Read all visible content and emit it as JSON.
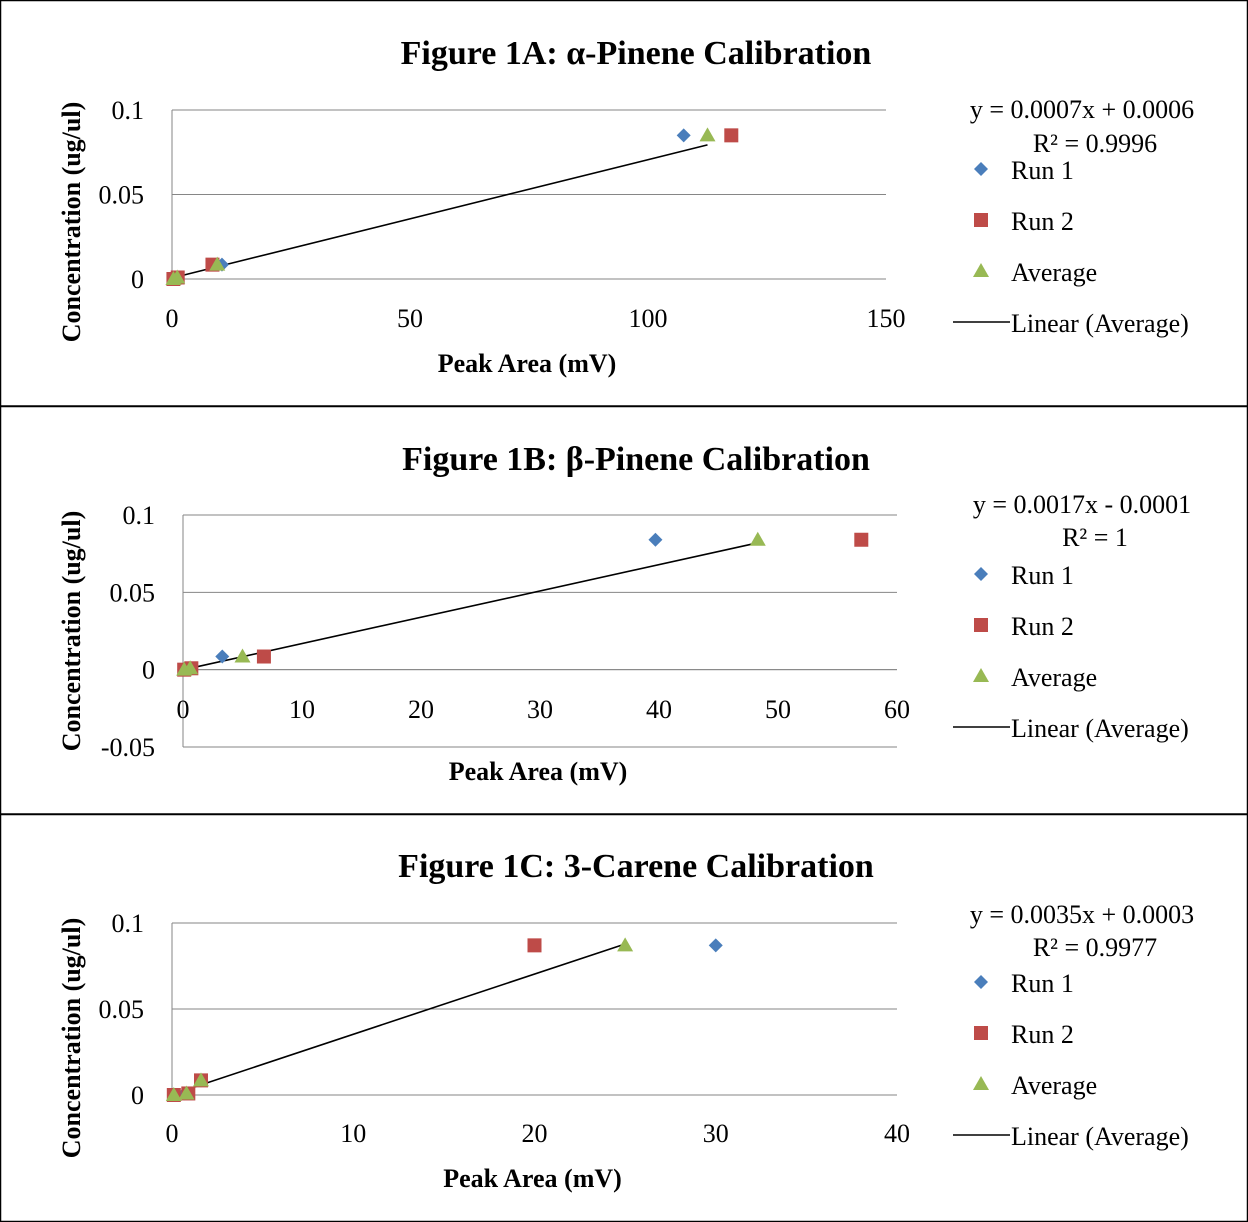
{
  "chart_data": [
    {
      "type": "scatter",
      "title": "Figure 1A: α-Pinene Calibration",
      "xlabel": "Peak Area (mV)",
      "ylabel": "Concentration (ug/ul)",
      "xlim": [
        0,
        150
      ],
      "ylim": [
        0,
        0.1
      ],
      "xticks": [
        0,
        50,
        100,
        150
      ],
      "yticks": [
        0,
        0.05,
        0.1
      ],
      "ytick_labels": [
        "0",
        "0.05",
        "0.1"
      ],
      "grid": true,
      "legend": "right",
      "series": [
        {
          "name": "Run 1",
          "marker": "diamond",
          "color": "#4a7ebb",
          "points": [
            [
              0.3,
              0
            ],
            [
              1.0,
              0.0009
            ],
            [
              10.5,
              0.0085
            ],
            [
              107.5,
              0.085
            ]
          ]
        },
        {
          "name": "Run 2",
          "marker": "square",
          "color": "#be4b48",
          "points": [
            [
              0.3,
              0
            ],
            [
              1.2,
              0.0009
            ],
            [
              8.5,
              0.0085
            ],
            [
              117.5,
              0.085
            ]
          ]
        },
        {
          "name": "Average",
          "marker": "triangle",
          "color": "#98b954",
          "points": [
            [
              0.3,
              0
            ],
            [
              1.1,
              0.0009
            ],
            [
              9.5,
              0.0085
            ],
            [
              112.5,
              0.085
            ]
          ]
        }
      ],
      "trendline": {
        "name": "Linear (Average)",
        "color": "#000000",
        "x_range": [
          0,
          112.5
        ],
        "slope": 0.0007,
        "intercept": 0.0006
      },
      "equation": "y = 0.0007x + 0.0006",
      "r2": "R² = 0.9996"
    },
    {
      "type": "scatter",
      "title": "Figure 1B: β-Pinene Calibration",
      "xlabel": "Peak Area (mV)",
      "ylabel": "Concentration (ug/ul)",
      "xlim": [
        0,
        60
      ],
      "ylim": [
        -0.05,
        0.1
      ],
      "xticks": [
        0,
        10,
        20,
        30,
        40,
        50,
        60
      ],
      "yticks": [
        -0.05,
        0,
        0.05,
        0.1
      ],
      "ytick_labels": [
        "-0.05",
        "0",
        "0.05",
        "0.1"
      ],
      "grid": true,
      "legend": "right",
      "series": [
        {
          "name": "Run 1",
          "marker": "diamond",
          "color": "#4a7ebb",
          "points": [
            [
              0.1,
              0
            ],
            [
              0.5,
              0.0009
            ],
            [
              3.3,
              0.0085
            ],
            [
              39.7,
              0.084
            ]
          ]
        },
        {
          "name": "Run 2",
          "marker": "square",
          "color": "#be4b48",
          "points": [
            [
              0.1,
              0
            ],
            [
              0.7,
              0.0009
            ],
            [
              6.8,
              0.0085
            ],
            [
              57.0,
              0.084
            ]
          ]
        },
        {
          "name": "Average",
          "marker": "triangle",
          "color": "#98b954",
          "points": [
            [
              0.1,
              0
            ],
            [
              0.6,
              0.0009
            ],
            [
              5.0,
              0.0085
            ],
            [
              48.3,
              0.084
            ]
          ]
        }
      ],
      "trendline": {
        "name": "Linear (Average)",
        "color": "#000000",
        "x_range": [
          0,
          48.3
        ],
        "slope": 0.0017,
        "intercept": -0.0001
      },
      "equation": "y = 0.0017x - 0.0001",
      "r2": "R² = 1"
    },
    {
      "type": "scatter",
      "title": "Figure 1C: 3-Carene Calibration",
      "xlabel": "Peak Area (mV)",
      "ylabel": "Concentration (ug/ul)",
      "xlim": [
        0,
        40
      ],
      "ylim": [
        0,
        0.1
      ],
      "xticks": [
        0,
        10,
        20,
        30,
        40
      ],
      "yticks": [
        0,
        0.05,
        0.1
      ],
      "ytick_labels": [
        "0",
        "0.05",
        "0.1"
      ],
      "grid": true,
      "legend": "right",
      "series": [
        {
          "name": "Run 1",
          "marker": "diamond",
          "color": "#4a7ebb",
          "points": [
            [
              0.1,
              0
            ],
            [
              0.7,
              0.0009
            ],
            [
              1.6,
              0.0085
            ],
            [
              30.0,
              0.087
            ]
          ]
        },
        {
          "name": "Run 2",
          "marker": "square",
          "color": "#be4b48",
          "points": [
            [
              0.1,
              0
            ],
            [
              0.9,
              0.0009
            ],
            [
              1.6,
              0.0085
            ],
            [
              20.0,
              0.087
            ]
          ]
        },
        {
          "name": "Average",
          "marker": "triangle",
          "color": "#98b954",
          "points": [
            [
              0.1,
              0
            ],
            [
              0.8,
              0.0009
            ],
            [
              1.6,
              0.0085
            ],
            [
              25.0,
              0.087
            ]
          ]
        }
      ],
      "trendline": {
        "name": "Linear (Average)",
        "color": "#000000",
        "x_range": [
          0,
          25.0
        ],
        "slope": 0.0035,
        "intercept": 0.0003
      },
      "equation": "y = 0.0035x + 0.0003",
      "r2": "R² = 0.9977"
    }
  ]
}
